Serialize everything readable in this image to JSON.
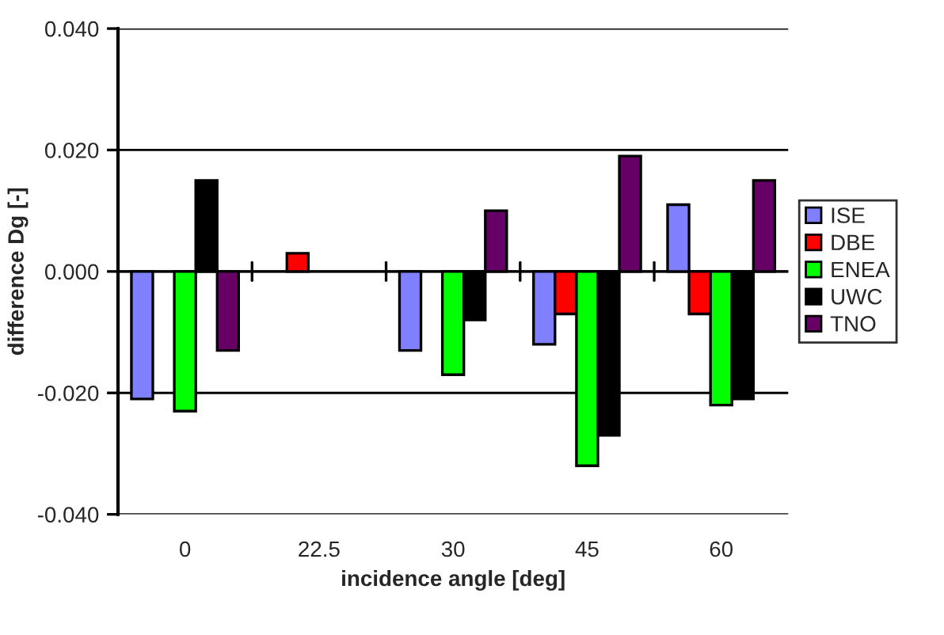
{
  "chart_data": {
    "type": "bar",
    "xlabel": "incidence angle [deg]",
    "ylabel": "difference Dg [-]",
    "categories": [
      "0",
      "22.5",
      "30",
      "45",
      "60"
    ],
    "series": [
      {
        "name": "ISE",
        "color": "#8080ff",
        "values": [
          -0.021,
          null,
          -0.013,
          -0.012,
          0.011
        ]
      },
      {
        "name": "DBE",
        "color": "#ff0000",
        "values": [
          null,
          0.003,
          null,
          -0.007,
          -0.007
        ]
      },
      {
        "name": "ENEA",
        "color": "#00ff00",
        "values": [
          -0.023,
          null,
          -0.017,
          -0.032,
          -0.022
        ]
      },
      {
        "name": "UWC",
        "color": "#000000",
        "values": [
          0.015,
          null,
          -0.008,
          -0.027,
          -0.021
        ]
      },
      {
        "name": "TNO",
        "color": "#660066",
        "values": [
          -0.013,
          null,
          0.01,
          0.019,
          0.015
        ]
      }
    ],
    "ylim": [
      -0.04,
      0.04
    ],
    "yticks": [
      {
        "value": -0.04,
        "label": "-0.040"
      },
      {
        "value": -0.02,
        "label": "-0.020"
      },
      {
        "value": 0,
        "label": "0.000"
      },
      {
        "value": 0.02,
        "label": "0.020"
      },
      {
        "value": 0.04,
        "label": "0.040"
      }
    ],
    "grid": "y",
    "legend": "right"
  }
}
